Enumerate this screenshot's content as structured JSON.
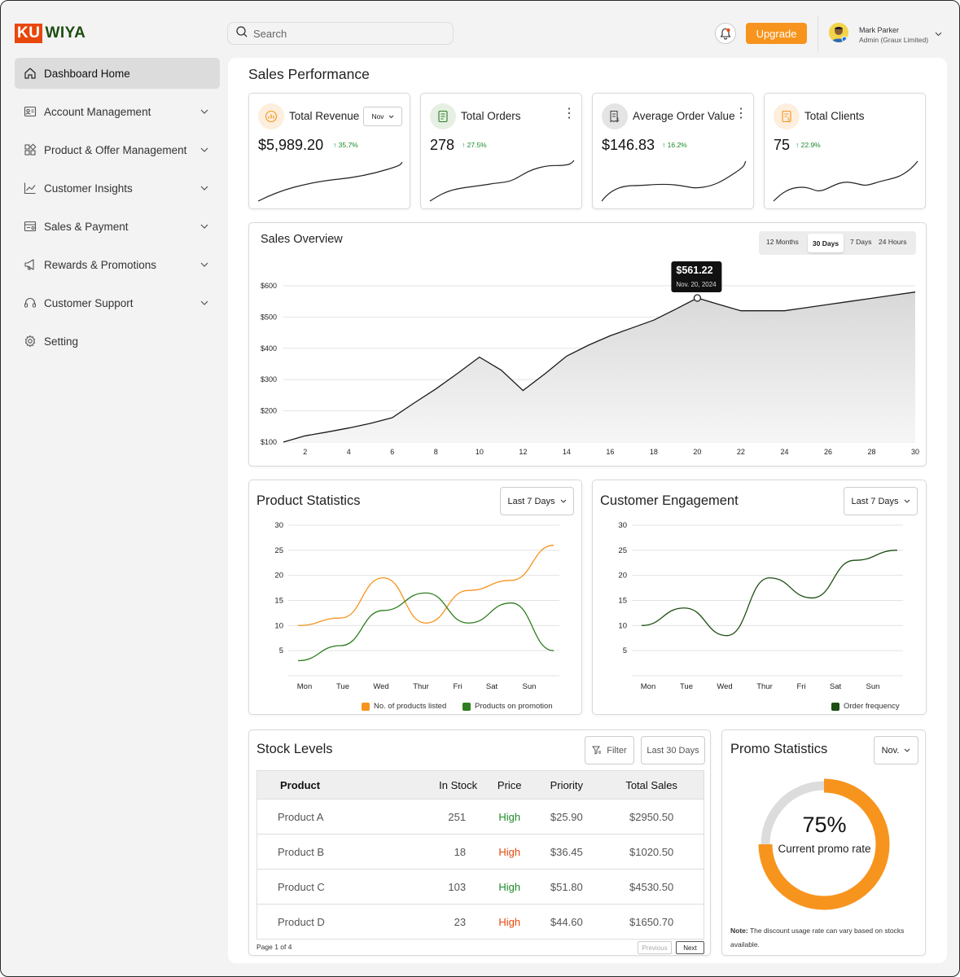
{
  "brand": {
    "part1": "KU",
    "part2": "WIYA"
  },
  "search": {
    "placeholder": "Search"
  },
  "header": {
    "upgrade_label": "Upgrade",
    "user_name": "Mark Parker",
    "user_role": "Admin (Graux Limited)"
  },
  "sidebar": {
    "items": [
      {
        "label": "Dashboard Home",
        "icon": "home-icon"
      },
      {
        "label": "Account Management",
        "icon": "account-icon"
      },
      {
        "label": "Product & Offer Management",
        "icon": "grid-icon"
      },
      {
        "label": "Customer Insights",
        "icon": "chart-line-icon"
      },
      {
        "label": "Sales & Payment",
        "icon": "payment-icon"
      },
      {
        "label": "Rewards & Promotions",
        "icon": "megaphone-icon"
      },
      {
        "label": "Customer Support",
        "icon": "headset-icon"
      },
      {
        "label": "Setting",
        "icon": "gear-icon"
      }
    ]
  },
  "main": {
    "title": "Sales Performance"
  },
  "kpis": [
    {
      "label": "Total Revenue",
      "value": "$5,989.20",
      "change": "35.7%",
      "control": "Nov",
      "icon_bg": "#fdeedd",
      "icon_color": "#f7941d"
    },
    {
      "label": "Total Orders",
      "value": "278",
      "change": "27.5%",
      "control": "⋮",
      "icon_bg": "#e5f0e2",
      "icon_color": "#2f7d2a"
    },
    {
      "label": "Average Order Value",
      "value": "$146.83",
      "change": "16.2%",
      "control": "⋮",
      "icon_bg": "#e4e4e4",
      "icon_color": "#444"
    },
    {
      "label": "Total Clients",
      "value": "75",
      "change": "22.9%",
      "control": "",
      "icon_bg": "#fdeedd",
      "icon_color": "#f7941d"
    }
  ],
  "sales_overview": {
    "title": "Sales Overview",
    "ranges": [
      "12 Months",
      "30 Days",
      "7 Days",
      "24 Hours"
    ],
    "selected_range": "30 Days",
    "tooltip": {
      "value": "$561.22",
      "date": "Nov. 20, 2024"
    }
  },
  "product_statistics": {
    "title": "Product Statistics",
    "range": "Last 7 Days"
  },
  "customer_engagement": {
    "title": "Customer Engagement",
    "range": "Last 7 Days"
  },
  "chart_data": [
    {
      "type": "area",
      "x": [
        1,
        2,
        3,
        4,
        5,
        6,
        7,
        8,
        9,
        10,
        11,
        12,
        13,
        14,
        15,
        16,
        17,
        18,
        19,
        20,
        21,
        22,
        23,
        24,
        25,
        26,
        27,
        28,
        29,
        30
      ],
      "values": [
        100,
        120,
        132,
        145,
        160,
        178,
        225,
        270,
        320,
        372,
        330,
        265,
        318,
        375,
        410,
        440,
        465,
        490,
        525,
        561,
        540,
        520,
        520,
        520,
        530,
        540,
        550,
        560,
        570,
        580
      ],
      "xticks": [
        2,
        4,
        6,
        8,
        10,
        12,
        14,
        16,
        18,
        20,
        22,
        24,
        26,
        28,
        30
      ],
      "yticks": [
        "$100",
        "$200",
        "$300",
        "$400",
        "$500",
        "$600"
      ],
      "ylim": [
        100,
        600
      ]
    },
    {
      "type": "line",
      "categories": [
        "Mon",
        "Tue",
        "Wed",
        "Thur",
        "Fri",
        "Sat",
        "Sun"
      ],
      "ylim": [
        0,
        30
      ],
      "yticks": [
        5,
        10,
        15,
        20,
        25,
        30
      ],
      "series": [
        {
          "name": "No. of products listed",
          "color": "#f7941d",
          "values": [
            10,
            11.5,
            19.5,
            10.5,
            17,
            19,
            26
          ]
        },
        {
          "name": "Products on promotion",
          "color": "#2e7d1f",
          "values": [
            3,
            6,
            13,
            16.5,
            10.5,
            14.5,
            5
          ]
        }
      ]
    },
    {
      "type": "line",
      "categories": [
        "Mon",
        "Tue",
        "Wed",
        "Thur",
        "Fri",
        "Sat",
        "Sun"
      ],
      "ylim": [
        0,
        30
      ],
      "yticks": [
        5,
        10,
        15,
        20,
        25,
        30
      ],
      "series": [
        {
          "name": "Order frequency",
          "color": "#1e4d14",
          "values": [
            10,
            13.5,
            8,
            19.5,
            15.5,
            23,
            25
          ]
        }
      ]
    }
  ],
  "stock": {
    "title": "Stock Levels",
    "filter_label": "Filter",
    "range_label": "Last 30 Days",
    "columns": [
      "Product",
      "In Stock",
      "Price",
      "Priority",
      "Total Sales"
    ],
    "rows": [
      {
        "product": "Product A",
        "in_stock": "251",
        "price": "High",
        "priority": "$25.90",
        "total": "$2950.50",
        "price_color": "#1f8a2a"
      },
      {
        "product": "Product B",
        "in_stock": "18",
        "price": "High",
        "priority": "$36.45",
        "total": "$1020.50",
        "price_color": "#e8470c"
      },
      {
        "product": "Product C",
        "in_stock": "103",
        "price": "High",
        "priority": "$51.80",
        "total": "$4530.50",
        "price_color": "#1f8a2a"
      },
      {
        "product": "Product D",
        "in_stock": "23",
        "price": "High",
        "priority": "$44.60",
        "total": "$1650.70",
        "price_color": "#e8470c"
      }
    ],
    "page_info": "Page 1 of 4",
    "prev_label": "Previous",
    "next_label": "Next"
  },
  "promo": {
    "title": "Promo Statistics",
    "month": "Nov.",
    "percent": "75%",
    "percent_value": 75,
    "caption": "Current promo rate",
    "note_label": "Note:",
    "note": " The discount usage rate can vary based on stocks available."
  }
}
